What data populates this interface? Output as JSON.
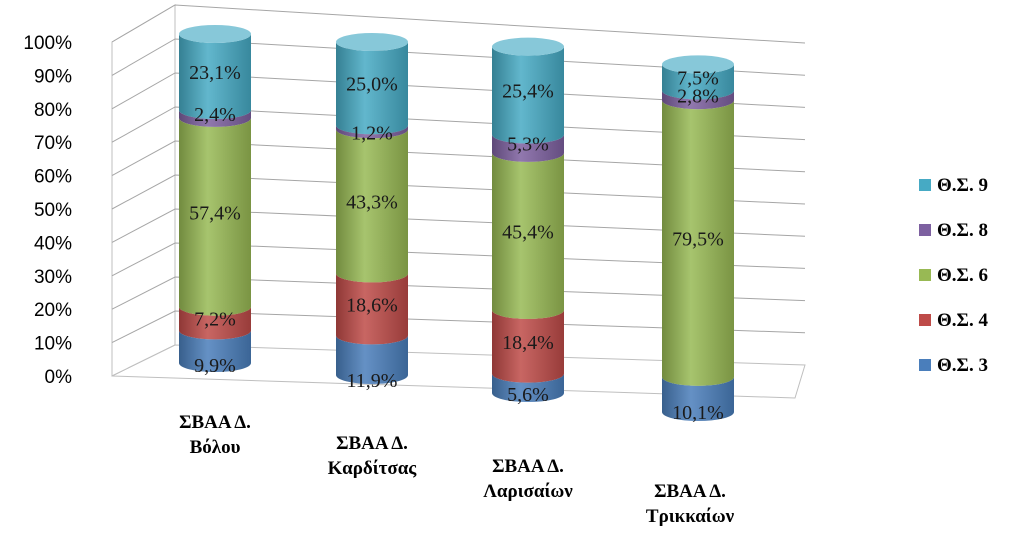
{
  "chart_data": {
    "type": "bar",
    "stacked": true,
    "percent": true,
    "style": "3d-cylinder",
    "title": "",
    "xlabel": "",
    "ylabel": "",
    "ylim": [
      0,
      100
    ],
    "yticks": [
      "0%",
      "10%",
      "20%",
      "30%",
      "40%",
      "50%",
      "60%",
      "70%",
      "80%",
      "90%",
      "100%"
    ],
    "grid": true,
    "legend_position": "right",
    "categories": [
      [
        "ΣΒΑΑ Δ.",
        "Βόλου"
      ],
      [
        "ΣΒΑΑ Δ.",
        "Καρδίτσας"
      ],
      [
        "ΣΒΑΑ Δ.",
        "Λαρισαίων"
      ],
      [
        "ΣΒΑΑ Δ.",
        "Τρικκαίων"
      ]
    ],
    "series": [
      {
        "name": "Θ.Σ. 3",
        "color": "#4a7ebb",
        "values": [
          9.9,
          11.9,
          5.6,
          10.1
        ],
        "labels": [
          "9,9%",
          "11,9%",
          "5,6%",
          "10,1%"
        ]
      },
      {
        "name": "Θ.Σ. 4",
        "color": "#be4b48",
        "values": [
          7.2,
          18.6,
          18.4,
          0
        ],
        "labels": [
          "7,2%",
          "18,6%",
          "18,4%",
          ""
        ]
      },
      {
        "name": "Θ.Σ. 6",
        "color": "#98b954",
        "values": [
          57.4,
          43.3,
          45.4,
          79.5
        ],
        "labels": [
          "57,4%",
          "43,3%",
          "45,4%",
          "79,5%"
        ]
      },
      {
        "name": "Θ.Σ. 8",
        "color": "#7d60a0",
        "values": [
          2.4,
          1.2,
          5.3,
          2.8
        ],
        "labels": [
          "2,4%",
          "1,2%",
          "5,3%",
          "2,8%"
        ]
      },
      {
        "name": "Θ.Σ. 9",
        "color": "#46aac4",
        "values": [
          23.1,
          25.0,
          25.4,
          7.5
        ],
        "labels": [
          "23,1%",
          "25,0%",
          "25,4%",
          "7,5%"
        ]
      }
    ]
  }
}
